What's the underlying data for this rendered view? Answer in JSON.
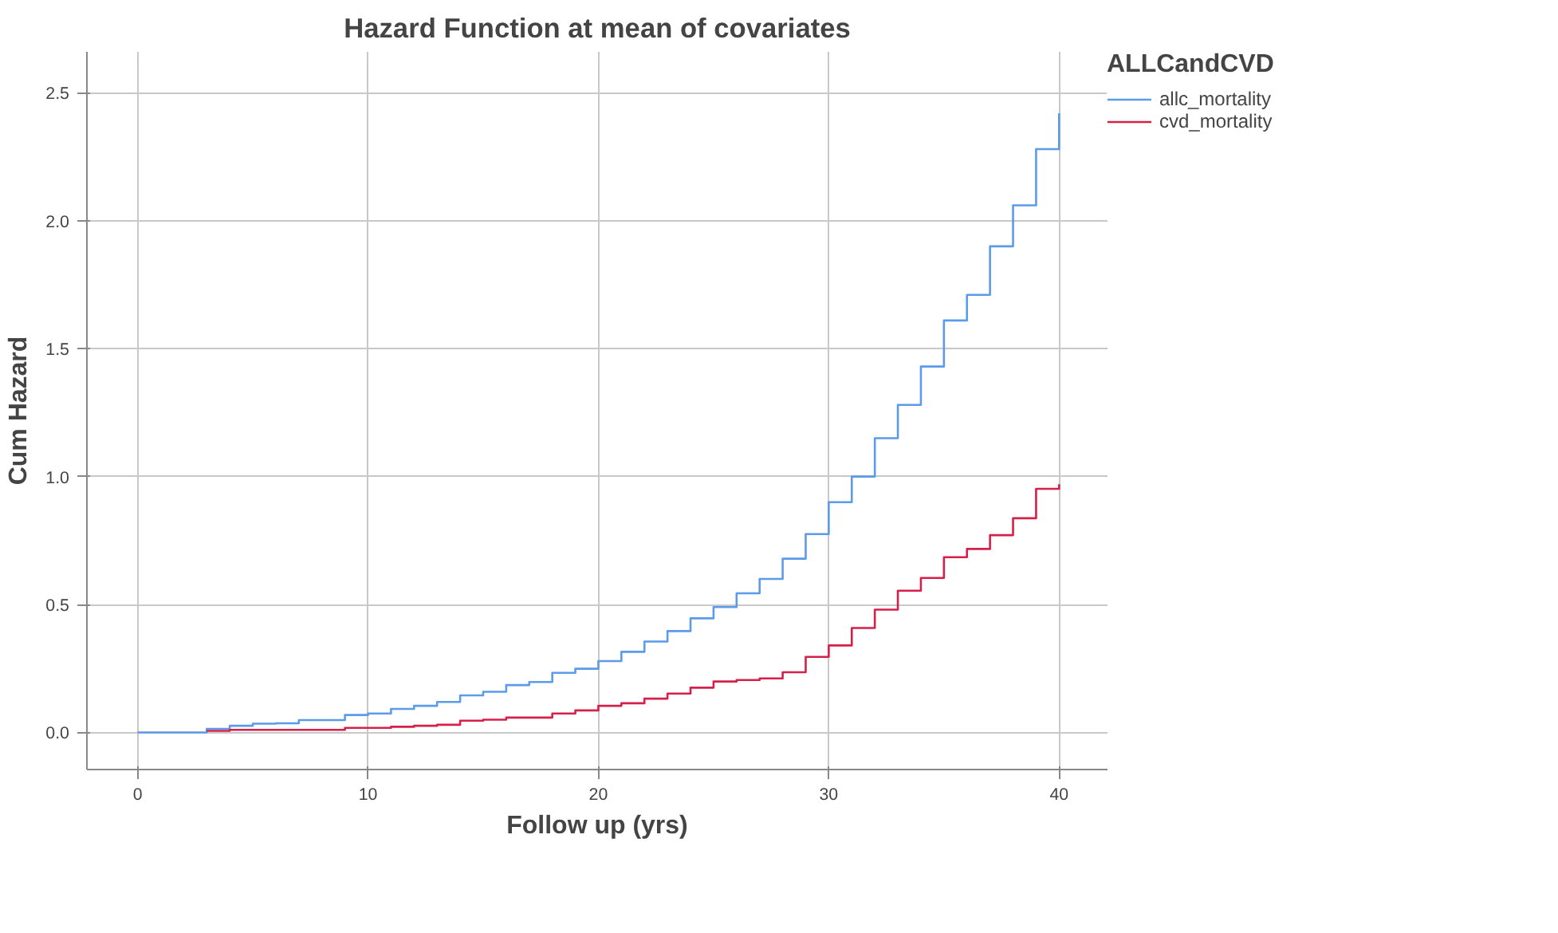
{
  "chart_data": {
    "type": "step",
    "title": "Hazard Function at mean of covariates",
    "xlabel": "Follow up (yrs)",
    "ylabel": "Cum Hazard",
    "legend_title": "ALLCandCVD",
    "legend": "top right",
    "grid": true,
    "line_style": "solid",
    "marker": "none",
    "x": [
      0,
      1,
      2,
      3,
      4,
      5,
      6,
      7,
      8,
      9,
      10,
      11,
      12,
      13,
      14,
      15,
      16,
      17,
      18,
      19,
      20,
      21,
      22,
      23,
      24,
      25,
      26,
      27,
      28,
      29,
      30,
      31,
      32,
      33,
      34,
      35,
      36,
      37,
      38,
      39,
      40
    ],
    "xlim": [
      -2.2,
      42.1
    ],
    "xticks": [
      0,
      10,
      20,
      30,
      40
    ],
    "ylim": [
      -0.145,
      2.66
    ],
    "yticks": [
      {
        "value": 0,
        "label": "0.0"
      },
      {
        "value": 0.5,
        "label": "0.5"
      },
      {
        "value": 1,
        "label": "1.0"
      },
      {
        "value": 1.5,
        "label": "1.5"
      },
      {
        "value": 2,
        "label": "2.0"
      },
      {
        "value": 2.5,
        "label": "2.5"
      }
    ],
    "series": [
      {
        "name": "allc_mortality",
        "color": "#5b9bea",
        "values": [
          0,
          0,
          0,
          0.014,
          0.026,
          0.034,
          0.036,
          0.048,
          0.048,
          0.068,
          0.074,
          0.092,
          0.104,
          0.119,
          0.145,
          0.159,
          0.185,
          0.197,
          0.233,
          0.249,
          0.279,
          0.315,
          0.355,
          0.396,
          0.446,
          0.49,
          0.544,
          0.6,
          0.679,
          0.775,
          0.9,
          1.0,
          1.15,
          1.28,
          1.43,
          1.61,
          1.71,
          1.9,
          2.06,
          2.28,
          2.42
        ]
      },
      {
        "name": "cvd_mortality",
        "color": "#d6204a",
        "values": [
          null,
          null,
          null,
          0.006,
          0.01,
          0.01,
          0.01,
          0.01,
          0.01,
          0.018,
          0.018,
          0.022,
          0.026,
          0.03,
          0.046,
          0.05,
          0.058,
          0.058,
          0.074,
          0.086,
          0.104,
          0.114,
          0.132,
          0.152,
          0.175,
          0.199,
          0.205,
          0.211,
          0.235,
          0.295,
          0.34,
          0.408,
          0.48,
          0.554,
          0.604,
          0.685,
          0.717,
          0.771,
          0.837,
          0.952,
          0.97
        ]
      }
    ]
  }
}
